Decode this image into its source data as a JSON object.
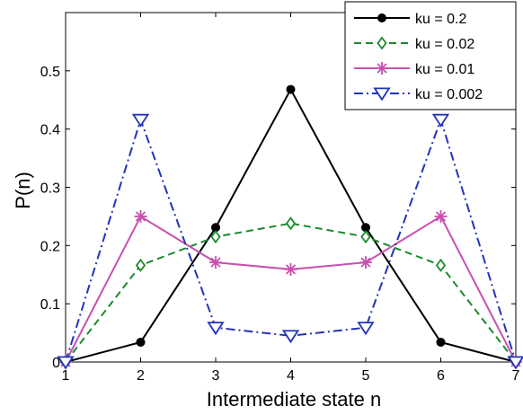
{
  "chart_data": {
    "type": "line",
    "xlabel": "Intermediate state n",
    "ylabel": "P(n)",
    "xlim": [
      1,
      7
    ],
    "ylim": [
      0,
      0.6
    ],
    "x": [
      1,
      2,
      3,
      4,
      5,
      6,
      7
    ],
    "xticks": [
      "1",
      "2",
      "3",
      "4",
      "5",
      "6",
      "7"
    ],
    "yticks": [
      "0",
      "0.1",
      "0.2",
      "0.3",
      "0.4",
      "0.5"
    ],
    "grid": false,
    "legend_position": "top-right",
    "series": [
      {
        "name": "ku = 0.2",
        "values": [
          0.0,
          0.034,
          0.231,
          0.468,
          0.231,
          0.034,
          0.0
        ],
        "color": "#000000",
        "line_style": "solid",
        "marker": "circle"
      },
      {
        "name": "ku = 0.02",
        "values": [
          0.0,
          0.166,
          0.215,
          0.238,
          0.215,
          0.166,
          0.0
        ],
        "color": "#1a8a2a",
        "line_style": "dashed",
        "marker": "diamond"
      },
      {
        "name": "ku = 0.01",
        "values": [
          0.0,
          0.25,
          0.171,
          0.159,
          0.171,
          0.25,
          0.0
        ],
        "color": "#c94fb0",
        "line_style": "solid",
        "marker": "asterisk"
      },
      {
        "name": "ku = 0.002",
        "values": [
          0.0,
          0.416,
          0.059,
          0.045,
          0.059,
          0.416,
          0.0
        ],
        "color": "#2233bb",
        "line_style": "dashdot",
        "marker": "triangle-down"
      }
    ]
  }
}
